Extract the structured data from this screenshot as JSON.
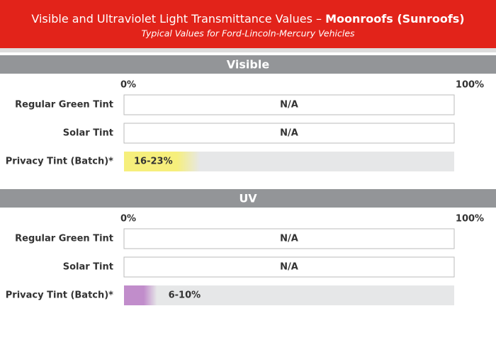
{
  "title": "Visible and Ultraviolet Light Transmittance Values –",
  "title_emphasis": "Moonroofs (Sunroofs)",
  "subtitle": "Typical Values for Ford-Lincoln-Mercury Vehicles",
  "chart_data": [
    {
      "type": "range-bar",
      "title": "Visible",
      "categories": [
        "Regular Green Tint",
        "Solar Tint",
        "Privacy Tint (Batch)*"
      ],
      "values": [
        null,
        null,
        [
          16,
          23
        ]
      ],
      "value_labels": [
        "N/A",
        "N/A",
        "16-23%"
      ],
      "color": "#f6ef7c",
      "xlim": [
        0,
        100
      ],
      "xticks": [
        {
          "value": 0,
          "label": "0%"
        },
        {
          "value": 100,
          "label": "100%"
        }
      ]
    },
    {
      "type": "range-bar",
      "title": "UV",
      "categories": [
        "Regular Green Tint",
        "Solar Tint",
        "Privacy Tint (Batch)*"
      ],
      "values": [
        null,
        null,
        [
          6,
          10
        ]
      ],
      "value_labels": [
        "N/A",
        "N/A",
        "6-10%"
      ],
      "color": "#c18dcb",
      "xlim": [
        0,
        100
      ],
      "xticks": [
        {
          "value": 0,
          "label": "0%"
        },
        {
          "value": 100,
          "label": "100%"
        }
      ]
    }
  ]
}
